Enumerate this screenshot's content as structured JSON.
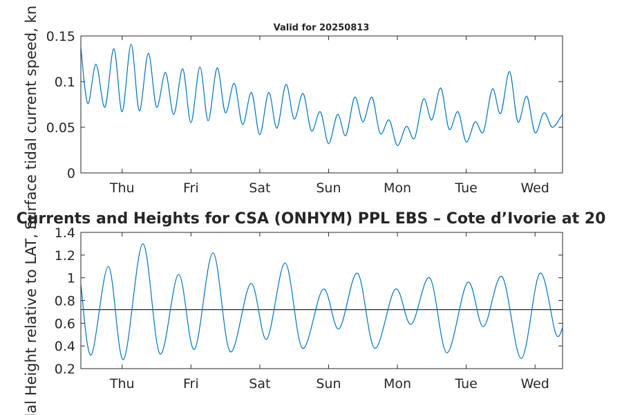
{
  "figure": {
    "main_title": "Currents and Heights for CSA (ONHYM) PPL EBS  – Cote d’Ivorie at 20",
    "sub_title": "Valid for 20250813"
  },
  "chart_data": [
    {
      "type": "line",
      "name": "top",
      "ylabel": "Surface tidal current speed, kn",
      "ylim": [
        0,
        0.15
      ],
      "yticks": [
        0,
        0.05,
        0.1,
        0.15
      ],
      "ytick_labels": [
        "0",
        "0.05",
        "0.1",
        "0.15"
      ],
      "xlim": [
        0,
        7
      ],
      "xticks": [
        0.6,
        1.6,
        2.6,
        3.6,
        4.6,
        5.6,
        6.6
      ],
      "xtick_labels": [
        "Thu",
        "Fri",
        "Sat",
        "Sun",
        "Mon",
        "Tue",
        "Wed"
      ],
      "grid": false,
      "series": [
        {
          "color": "#0072bd",
          "x": [
            0,
            0.1,
            0.22,
            0.35,
            0.48,
            0.6,
            0.73,
            0.85,
            0.98,
            1.1,
            1.23,
            1.35,
            1.48,
            1.6,
            1.73,
            1.85,
            1.98,
            2.1,
            2.23,
            2.35,
            2.48,
            2.6,
            2.73,
            2.85,
            2.98,
            3.1,
            3.23,
            3.35,
            3.48,
            3.6,
            3.73,
            3.85,
            3.98,
            4.1,
            4.23,
            4.35,
            4.48,
            4.6,
            4.73,
            4.85,
            4.98,
            5.1,
            5.23,
            5.35,
            5.48,
            5.6,
            5.73,
            5.85,
            5.98,
            6.1,
            6.23,
            6.35,
            6.48,
            6.6,
            6.73,
            6.85,
            6.98,
            7.0
          ],
          "y": [
            0.137,
            0.076,
            0.119,
            0.072,
            0.136,
            0.067,
            0.141,
            0.068,
            0.131,
            0.072,
            0.11,
            0.064,
            0.114,
            0.055,
            0.116,
            0.057,
            0.115,
            0.066,
            0.098,
            0.053,
            0.088,
            0.042,
            0.088,
            0.049,
            0.097,
            0.059,
            0.087,
            0.046,
            0.067,
            0.032,
            0.064,
            0.041,
            0.083,
            0.056,
            0.083,
            0.043,
            0.058,
            0.03,
            0.051,
            0.038,
            0.081,
            0.058,
            0.093,
            0.048,
            0.067,
            0.034,
            0.056,
            0.045,
            0.092,
            0.065,
            0.111,
            0.056,
            0.084,
            0.044,
            0.066,
            0.05,
            0.062,
            0.065
          ]
        }
      ]
    },
    {
      "type": "line",
      "name": "bottom",
      "ylabel": "Tidal Height relative to LAT, m",
      "ylim": [
        0.2,
        1.4
      ],
      "yticks": [
        0.2,
        0.4,
        0.6,
        0.8,
        1.0,
        1.2,
        1.4
      ],
      "ytick_labels": [
        "0.2",
        "0.4",
        "0.6",
        "0.8",
        "1",
        "1.2",
        "1.4"
      ],
      "xlim": [
        0,
        7
      ],
      "xticks": [
        0.6,
        1.6,
        2.6,
        3.6,
        4.6,
        5.6,
        6.6
      ],
      "xtick_labels": [
        "Thu",
        "Fri",
        "Sat",
        "Sun",
        "Mon",
        "Tue",
        "Wed"
      ],
      "grid": false,
      "reference_line": 0.72,
      "series": [
        {
          "color": "#0072bd",
          "x": [
            0,
            0.15,
            0.4,
            0.62,
            0.9,
            1.15,
            1.42,
            1.65,
            1.92,
            2.17,
            2.47,
            2.7,
            2.97,
            3.22,
            3.52,
            3.75,
            4.02,
            4.27,
            4.57,
            4.8,
            5.07,
            5.32,
            5.62,
            5.85,
            6.12,
            6.4,
            6.67,
            6.9,
            7.0
          ],
          "y": [
            0.94,
            0.32,
            1.1,
            0.28,
            1.3,
            0.33,
            1.03,
            0.37,
            1.22,
            0.35,
            0.95,
            0.46,
            1.13,
            0.38,
            0.9,
            0.55,
            1.04,
            0.38,
            0.9,
            0.59,
            1.0,
            0.34,
            0.96,
            0.57,
            1.01,
            0.29,
            1.04,
            0.51,
            0.56
          ]
        }
      ]
    }
  ]
}
